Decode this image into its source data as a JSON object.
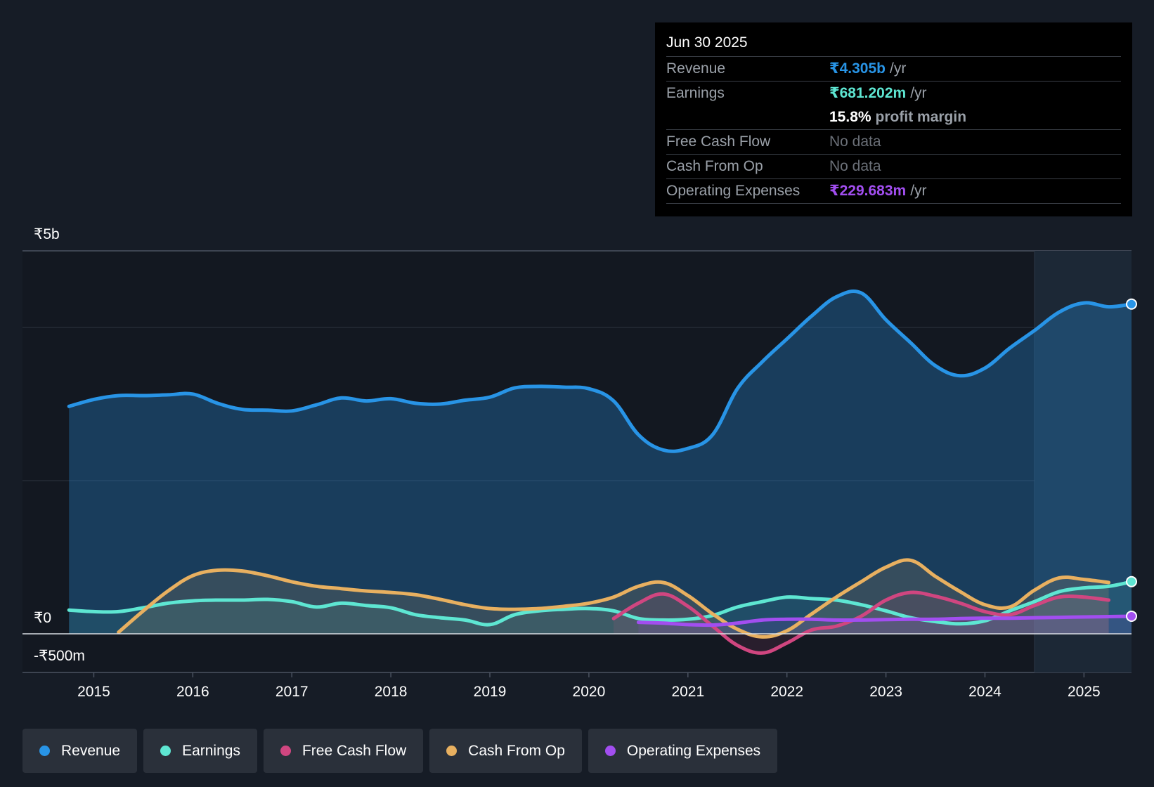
{
  "colors": {
    "background": "#161c26",
    "revenue": "#2894e6",
    "earnings": "#5ee6d2",
    "free_cash_flow": "#d04680",
    "cash_from_op": "#e8b060",
    "operating_expenses": "#a24ef0"
  },
  "tooltip": {
    "date": "Jun 30 2025",
    "revenue_label": "Revenue",
    "revenue_value": "₹4.305b",
    "revenue_unit": "/yr",
    "earnings_label": "Earnings",
    "earnings_value": "₹681.202m",
    "earnings_unit": "/yr",
    "margin_value": "15.8%",
    "margin_label": "profit margin",
    "fcf_label": "Free Cash Flow",
    "fcf_value": "No data",
    "cfo_label": "Cash From Op",
    "cfo_value": "No data",
    "opex_label": "Operating Expenses",
    "opex_value": "₹229.683m",
    "opex_unit": "/yr"
  },
  "legend": [
    {
      "label": "Revenue",
      "color": "#2894e6"
    },
    {
      "label": "Earnings",
      "color": "#5ee6d2"
    },
    {
      "label": "Free Cash Flow",
      "color": "#d04680"
    },
    {
      "label": "Cash From Op",
      "color": "#e8b060"
    },
    {
      "label": "Operating Expenses",
      "color": "#a24ef0"
    }
  ],
  "chart_data": {
    "type": "line",
    "title": "",
    "xlabel": "",
    "ylabel": "",
    "xlim": [
      2014.28,
      2025.48
    ],
    "ylim": [
      -500,
      5000
    ],
    "y_tick_labels": [
      {
        "value": 5000,
        "label": "₹5b"
      },
      {
        "value": 0,
        "label": "₹0"
      },
      {
        "value": -500,
        "label": "-₹500m"
      }
    ],
    "x_ticks": [
      2015,
      2016,
      2017,
      2018,
      2019,
      2020,
      2021,
      2022,
      2023,
      2024,
      2025
    ],
    "x_tick_labels": [
      "2015",
      "2016",
      "2017",
      "2018",
      "2019",
      "2020",
      "2021",
      "2022",
      "2023",
      "2024",
      "2025"
    ],
    "forecast_start": 2024.5,
    "series": [
      {
        "name": "Revenue",
        "key": "revenue",
        "x": [
          2014.75,
          2015.0,
          2015.25,
          2015.5,
          2015.75,
          2016.0,
          2016.25,
          2016.5,
          2016.75,
          2017.0,
          2017.25,
          2017.5,
          2017.75,
          2018.0,
          2018.25,
          2018.5,
          2018.75,
          2019.0,
          2019.25,
          2019.5,
          2019.75,
          2020.0,
          2020.25,
          2020.5,
          2020.75,
          2021.0,
          2021.25,
          2021.5,
          2021.75,
          2022.0,
          2022.25,
          2022.5,
          2022.75,
          2023.0,
          2023.25,
          2023.5,
          2023.75,
          2024.0,
          2024.25,
          2024.5,
          2024.75,
          2025.0,
          2025.25,
          2025.48
        ],
        "values": [
          2970,
          3060,
          3110,
          3110,
          3120,
          3130,
          3010,
          2930,
          2920,
          2910,
          2990,
          3080,
          3040,
          3070,
          3010,
          3000,
          3050,
          3090,
          3210,
          3230,
          3220,
          3200,
          3040,
          2600,
          2400,
          2420,
          2600,
          3200,
          3550,
          3850,
          4150,
          4400,
          4450,
          4100,
          3800,
          3500,
          3370,
          3470,
          3730,
          3960,
          4200,
          4320,
          4270,
          4305
        ]
      },
      {
        "name": "Earnings",
        "key": "earnings",
        "x": [
          2014.75,
          2015.0,
          2015.25,
          2015.5,
          2015.75,
          2016.0,
          2016.25,
          2016.5,
          2016.75,
          2017.0,
          2017.25,
          2017.5,
          2017.75,
          2018.0,
          2018.25,
          2018.5,
          2018.75,
          2019.0,
          2019.25,
          2019.5,
          2019.75,
          2020.0,
          2020.25,
          2020.5,
          2020.75,
          2021.0,
          2021.25,
          2021.5,
          2021.75,
          2022.0,
          2022.25,
          2022.5,
          2022.75,
          2023.0,
          2023.25,
          2023.5,
          2023.75,
          2024.0,
          2024.25,
          2024.5,
          2024.75,
          2025.0,
          2025.25,
          2025.48
        ],
        "values": [
          310,
          290,
          290,
          340,
          400,
          430,
          440,
          440,
          450,
          420,
          350,
          400,
          370,
          340,
          250,
          210,
          180,
          120,
          250,
          300,
          320,
          330,
          300,
          200,
          180,
          190,
          240,
          350,
          420,
          480,
          460,
          440,
          380,
          300,
          210,
          160,
          130,
          170,
          300,
          420,
          550,
          600,
          620,
          681
        ]
      },
      {
        "name": "Free Cash Flow",
        "key": "fcf",
        "x": [
          2020.25,
          2020.5,
          2020.75,
          2021.0,
          2021.25,
          2021.5,
          2021.75,
          2022.0,
          2022.25,
          2022.5,
          2022.75,
          2023.0,
          2023.25,
          2023.5,
          2023.75,
          2024.0,
          2024.25,
          2024.5,
          2024.75,
          2025.0,
          2025.25
        ],
        "values": [
          200,
          400,
          520,
          360,
          100,
          -150,
          -250,
          -120,
          50,
          100,
          230,
          440,
          540,
          490,
          400,
          290,
          250,
          370,
          480,
          480,
          440
        ]
      },
      {
        "name": "Cash From Op",
        "key": "cfo",
        "x": [
          2015.25,
          2015.5,
          2015.75,
          2016.0,
          2016.25,
          2016.5,
          2016.75,
          2017.0,
          2017.25,
          2017.5,
          2017.75,
          2018.0,
          2018.25,
          2018.5,
          2018.75,
          2019.0,
          2019.25,
          2019.5,
          2019.75,
          2020.0,
          2020.25,
          2020.5,
          2020.75,
          2021.0,
          2021.25,
          2021.5,
          2021.75,
          2022.0,
          2022.25,
          2022.5,
          2022.75,
          2023.0,
          2023.25,
          2023.5,
          2023.75,
          2024.0,
          2024.25,
          2024.5,
          2024.75,
          2025.0,
          2025.25
        ],
        "values": [
          20,
          300,
          560,
          760,
          830,
          820,
          760,
          680,
          620,
          590,
          560,
          540,
          510,
          450,
          380,
          330,
          320,
          330,
          360,
          400,
          480,
          620,
          670,
          500,
          260,
          60,
          -40,
          40,
          260,
          480,
          680,
          870,
          960,
          750,
          550,
          380,
          350,
          570,
          730,
          710,
          670
        ]
      },
      {
        "name": "Operating Expenses",
        "key": "opex",
        "x": [
          2020.5,
          2020.75,
          2021.0,
          2021.25,
          2021.5,
          2021.75,
          2022.0,
          2022.25,
          2022.5,
          2022.75,
          2023.0,
          2023.25,
          2023.5,
          2023.75,
          2024.0,
          2024.25,
          2024.5,
          2024.75,
          2025.0,
          2025.25,
          2025.48
        ],
        "values": [
          150,
          140,
          120,
          115,
          140,
          180,
          190,
          190,
          180,
          180,
          185,
          190,
          190,
          200,
          205,
          205,
          210,
          215,
          220,
          225,
          229.683
        ]
      }
    ]
  }
}
